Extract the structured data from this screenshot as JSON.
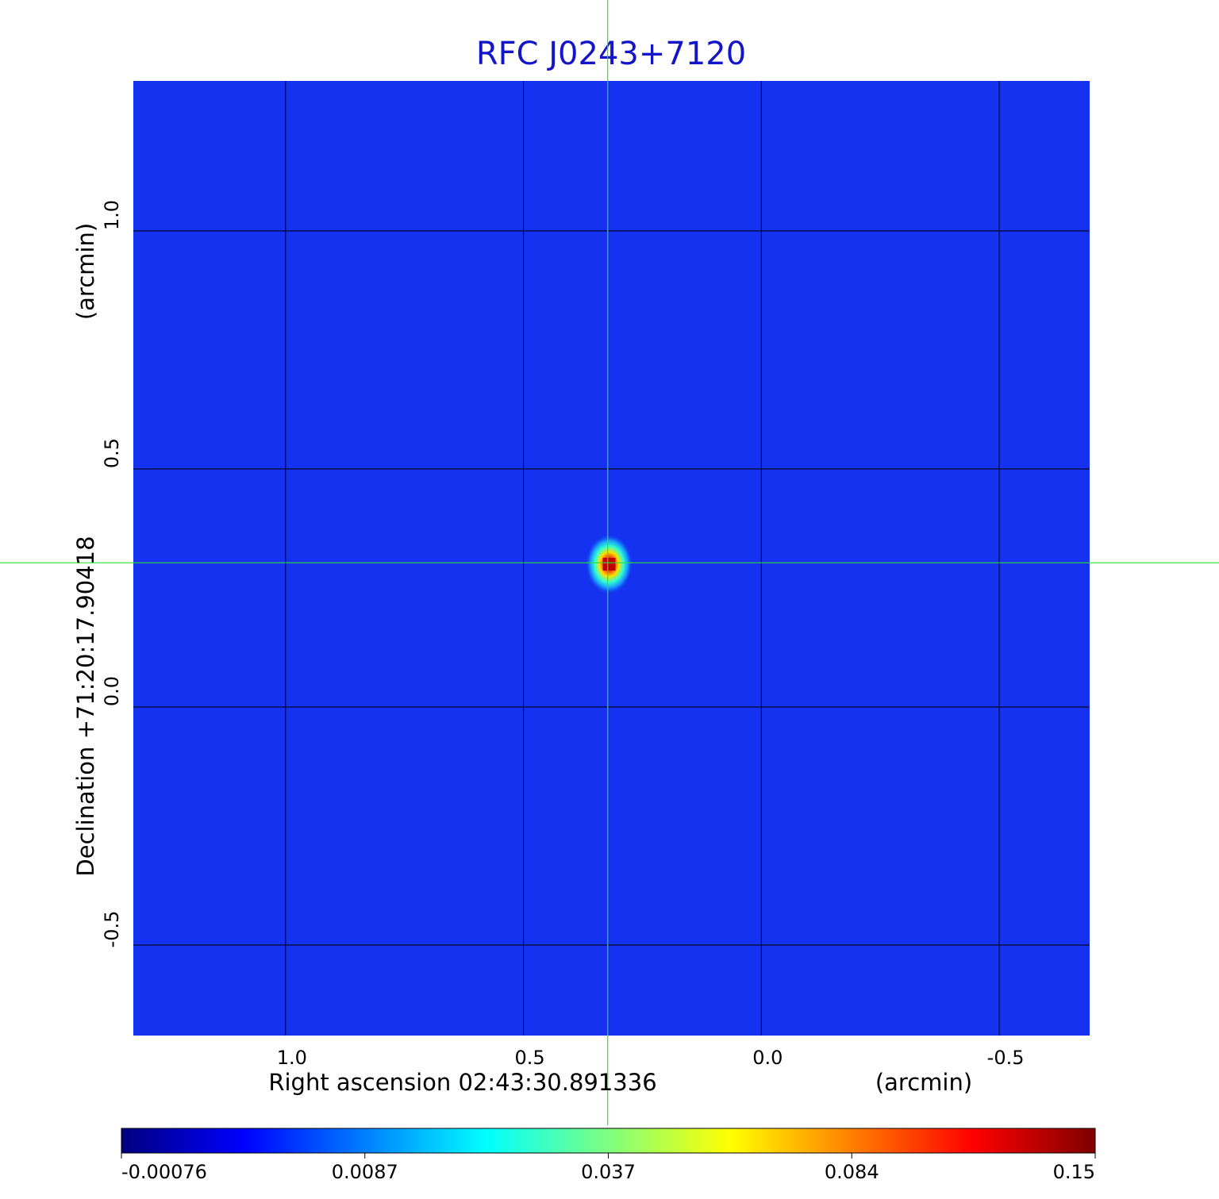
{
  "chart_data": {
    "type": "image",
    "title": "RFC J0243+7120",
    "xlabel": "Right ascension  02:43:30.891336",
    "xunit": "(arcmin)",
    "ylabel": "Declination  +71:20:17.90418",
    "yunit": "(arcmin)",
    "xlim": [
      1.32,
      -0.69
    ],
    "ylim": [
      -0.69,
      1.315
    ],
    "xticks": [
      {
        "value": 1,
        "label": "1.0"
      },
      0.5,
      {
        "value": 0,
        "label": "0.0"
      },
      -0.5
    ],
    "yticks": [
      {
        "value": 1,
        "label": "1.0"
      },
      0.5,
      {
        "value": 0,
        "label": "0.0"
      },
      -0.5
    ],
    "grid": true,
    "color": "#1432f0",
    "source": {
      "x": 0.32,
      "y": 0.3
    },
    "crosshair": {
      "x": 0.323,
      "y": 0.303
    },
    "colormap": "jet",
    "colorbar_ticks": [
      -0.00076,
      0.0087,
      0.037,
      0.084,
      0.15
    ]
  }
}
